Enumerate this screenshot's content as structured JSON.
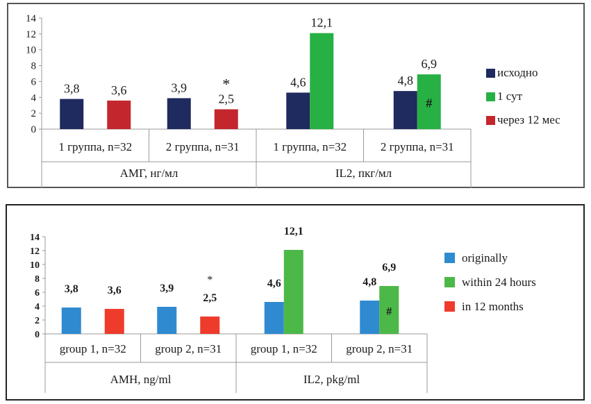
{
  "chart_data": [
    {
      "type": "bar",
      "language": "ru",
      "ylim": [
        0,
        14
      ],
      "yticks": [
        "0",
        "2",
        "4",
        "6",
        "8",
        "10",
        "12",
        "14"
      ],
      "groups": [
        {
          "label": "АМГ, нг/мл",
          "categories": [
            {
              "label": "1 группа, n=32",
              "bars": [
                {
                  "series": 0,
                  "value": 3.8,
                  "label": "3,8"
                },
                {
                  "series": 2,
                  "value": 3.6,
                  "label": "3,6"
                }
              ]
            },
            {
              "label": "2 группа, n=31",
              "bars": [
                {
                  "series": 0,
                  "value": 3.9,
                  "label": "3,9"
                },
                {
                  "series": 2,
                  "value": 2.5,
                  "label": "2,5",
                  "mark": "*"
                }
              ]
            }
          ]
        },
        {
          "label": "IL2, пкг/мл",
          "categories": [
            {
              "label": "1 группа, n=32",
              "bars": [
                {
                  "series": 0,
                  "value": 4.6,
                  "label": "4,6"
                },
                {
                  "series": 1,
                  "value": 12.1,
                  "label": "12,1"
                }
              ]
            },
            {
              "label": "2 группа, n=31",
              "bars": [
                {
                  "series": 0,
                  "value": 4.8,
                  "label": "4,8"
                },
                {
                  "series": 1,
                  "value": 6.9,
                  "label": "6,9",
                  "inner": "#"
                }
              ]
            }
          ]
        }
      ],
      "series": [
        {
          "name": "исходно",
          "color": "#1f2a5e"
        },
        {
          "name": "1 сут",
          "color": "#27b043"
        },
        {
          "name": "через 12 мес",
          "color": "#c4262e"
        }
      ],
      "legend_position": "right"
    },
    {
      "type": "bar",
      "language": "en",
      "ylim": [
        0,
        14
      ],
      "yticks": [
        "0",
        "2",
        "4",
        "6",
        "8",
        "10",
        "12",
        "14"
      ],
      "groups": [
        {
          "label": "AMH, ng/ml",
          "categories": [
            {
              "label": "group 1, n=32",
              "bars": [
                {
                  "series": 0,
                  "value": 3.8,
                  "label": "3,8"
                },
                {
                  "series": 2,
                  "value": 3.6,
                  "label": "3,6"
                }
              ]
            },
            {
              "label": "group 2, n=31",
              "bars": [
                {
                  "series": 0,
                  "value": 3.9,
                  "label": "3,9"
                },
                {
                  "series": 2,
                  "value": 2.5,
                  "label": "2,5",
                  "mark": "*"
                }
              ]
            }
          ]
        },
        {
          "label": "IL2, pkg/ml",
          "categories": [
            {
              "label": "group 1, n=32",
              "bars": [
                {
                  "series": 0,
                  "value": 4.6,
                  "label": "4,6"
                },
                {
                  "series": 1,
                  "value": 12.1,
                  "label": "12,1"
                }
              ]
            },
            {
              "label": "group 2, n=31",
              "bars": [
                {
                  "series": 0,
                  "value": 4.8,
                  "label": "4,8"
                },
                {
                  "series": 1,
                  "value": 6.9,
                  "label": "6,9",
                  "inner": "#"
                }
              ]
            }
          ]
        }
      ],
      "series": [
        {
          "name": "originally",
          "color": "#2f8ad0"
        },
        {
          "name": "within 24 hours",
          "color": "#4cb848"
        },
        {
          "name": "in 12 months",
          "color": "#ee3b2b"
        }
      ],
      "legend_position": "right"
    }
  ]
}
